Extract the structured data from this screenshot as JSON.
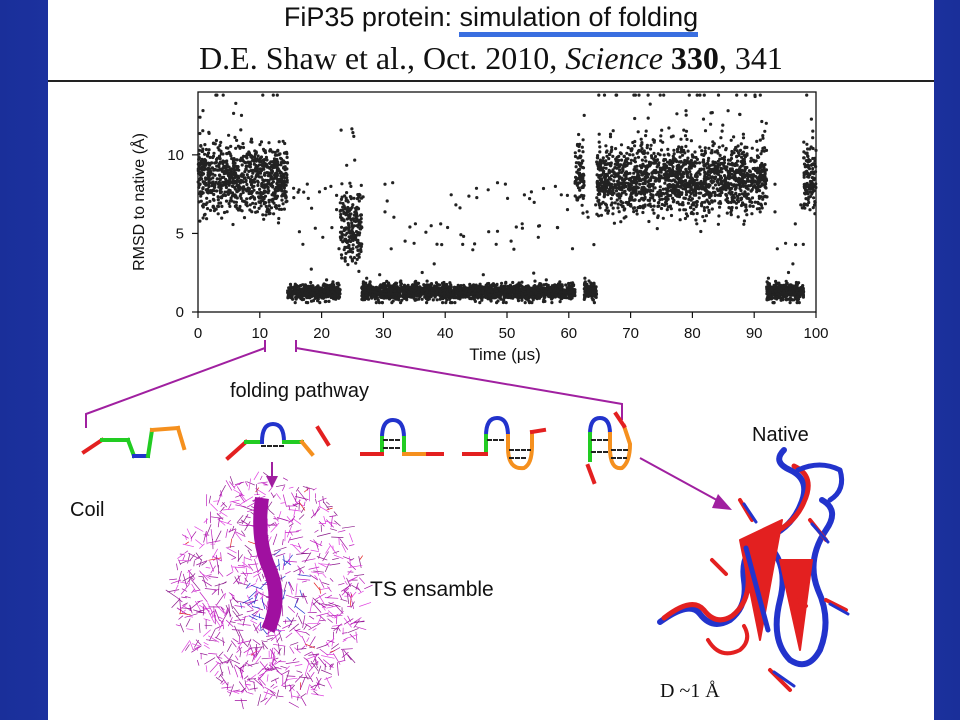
{
  "slide": {
    "title_prefix": "FiP35 protein: ",
    "title_highlight": "simulation of folding",
    "citation_authors": "D.E. Shaw et al., Oct. 2010, ",
    "citation_journal": "Science",
    "citation_volume": "330",
    "citation_pages": ", 341"
  },
  "diagram": {
    "pathway_label": "folding pathway",
    "coil_label": "Coil",
    "ts_label": "TS ensamble",
    "native_label": "Native",
    "rmsd_label": "D ~1 Å",
    "colors": {
      "red": "#e32020",
      "green": "#22cc22",
      "blue": "#2233cc",
      "orange": "#f5901e",
      "magenta": "#a020a0"
    }
  },
  "chart_data": {
    "type": "scatter",
    "xlabel": "Time (μs)",
    "ylabel": "RMSD to native (Å)",
    "xlim": [
      0,
      100
    ],
    "ylim": [
      0,
      14
    ],
    "xticks": [
      0,
      10,
      20,
      30,
      40,
      50,
      60,
      70,
      80,
      90,
      100
    ],
    "yticks": [
      0,
      5,
      10
    ],
    "point_color": "#222222",
    "segments": [
      {
        "t0": 0,
        "t1": 14.5,
        "state": "unfolded",
        "mean_rmsd": 8.5
      },
      {
        "t0": 14.5,
        "t1": 23,
        "state": "folded",
        "mean_rmsd": 1.3
      },
      {
        "t0": 23,
        "t1": 26.5,
        "state": "unfolded",
        "mean_rmsd": 5.5
      },
      {
        "t0": 26.5,
        "t1": 43,
        "state": "folded",
        "mean_rmsd": 1.3
      },
      {
        "t0": 43,
        "t1": 61,
        "state": "folded",
        "mean_rmsd": 1.3
      },
      {
        "t0": 61,
        "t1": 62.5,
        "state": "unfolded",
        "mean_rmsd": 9
      },
      {
        "t0": 62.5,
        "t1": 64.5,
        "state": "folded",
        "mean_rmsd": 1.3
      },
      {
        "t0": 64.5,
        "t1": 92,
        "state": "unfolded",
        "mean_rmsd": 8.5
      },
      {
        "t0": 92,
        "t1": 98,
        "state": "folded",
        "mean_rmsd": 1.3
      },
      {
        "t0": 98,
        "t1": 100,
        "state": "unfolded",
        "mean_rmsd": 8.5
      }
    ]
  }
}
